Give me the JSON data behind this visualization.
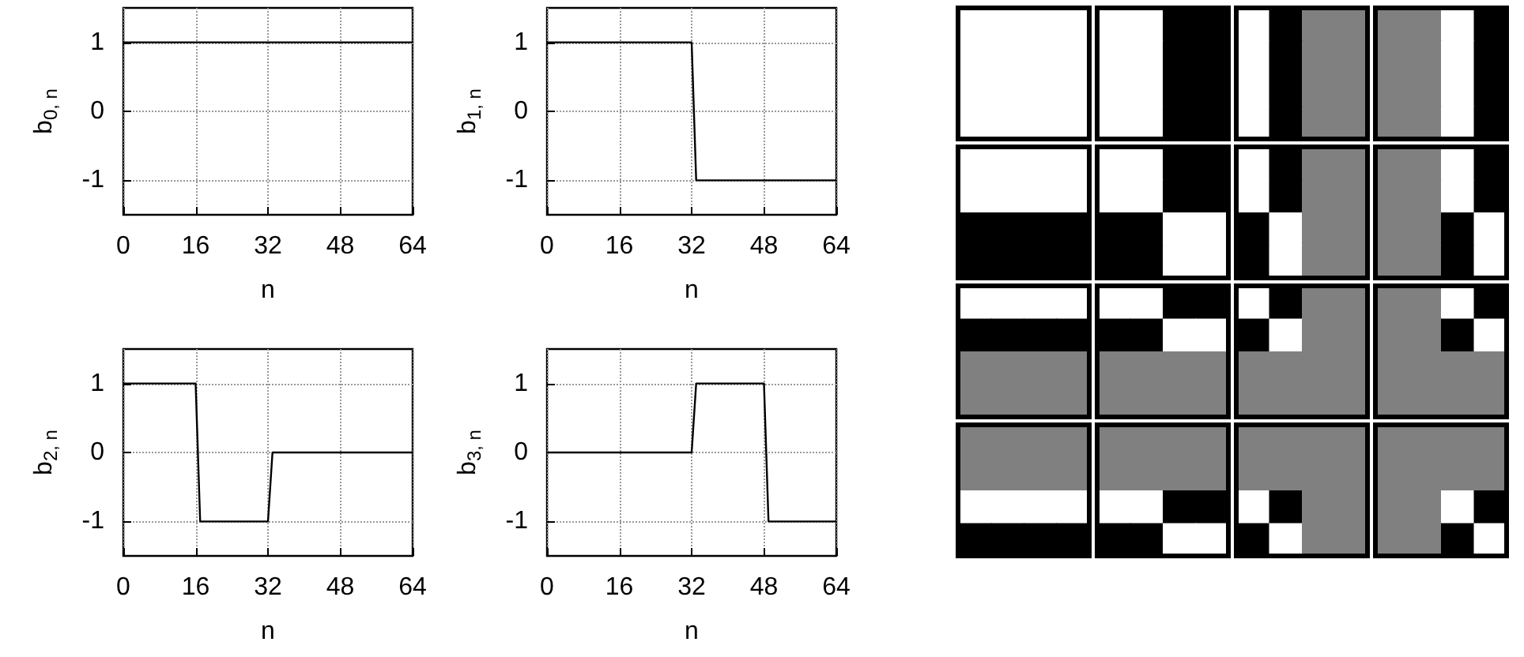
{
  "chart_data": [
    {
      "type": "line",
      "xlabel": "n",
      "ylabel": "b$_{0, n}$",
      "x": [
        0,
        64
      ],
      "values": [
        1,
        1
      ],
      "color": "#000000",
      "xlim": [
        0,
        64
      ],
      "xticks": [
        0,
        16,
        32,
        48,
        64
      ],
      "ylim": [
        -1.5,
        1.5
      ],
      "yticks": [
        -1,
        0,
        1
      ],
      "grid": true
    },
    {
      "type": "line",
      "xlabel": "n",
      "ylabel": "b$_{1, n}$",
      "x": [
        0,
        32,
        33,
        64
      ],
      "values": [
        1,
        1,
        -1,
        -1
      ],
      "color": "#000000",
      "xlim": [
        0,
        64
      ],
      "xticks": [
        0,
        16,
        32,
        48,
        64
      ],
      "ylim": [
        -1.5,
        1.5
      ],
      "yticks": [
        -1,
        0,
        1
      ],
      "grid": true
    },
    {
      "type": "line",
      "xlabel": "n",
      "ylabel": "b$_{2, n}$",
      "x": [
        0,
        16,
        17,
        32,
        33,
        64
      ],
      "values": [
        1,
        1,
        -1,
        -1,
        0,
        0
      ],
      "color": "#000000",
      "xlim": [
        0,
        64
      ],
      "xticks": [
        0,
        16,
        32,
        48,
        64
      ],
      "ylim": [
        -1.5,
        1.5
      ],
      "yticks": [
        -1,
        0,
        1
      ],
      "grid": true
    },
    {
      "type": "line",
      "xlabel": "n",
      "ylabel": "b$_{3, n}$",
      "x": [
        0,
        32,
        33,
        48,
        49,
        64
      ],
      "values": [
        0,
        0,
        1,
        1,
        -1,
        -1
      ],
      "color": "#000000",
      "xlim": [
        0,
        64
      ],
      "xticks": [
        0,
        16,
        32,
        48,
        64
      ],
      "ylim": [
        -1.5,
        1.5
      ],
      "yticks": [
        -1,
        0,
        1
      ],
      "grid": true
    }
  ]
}
